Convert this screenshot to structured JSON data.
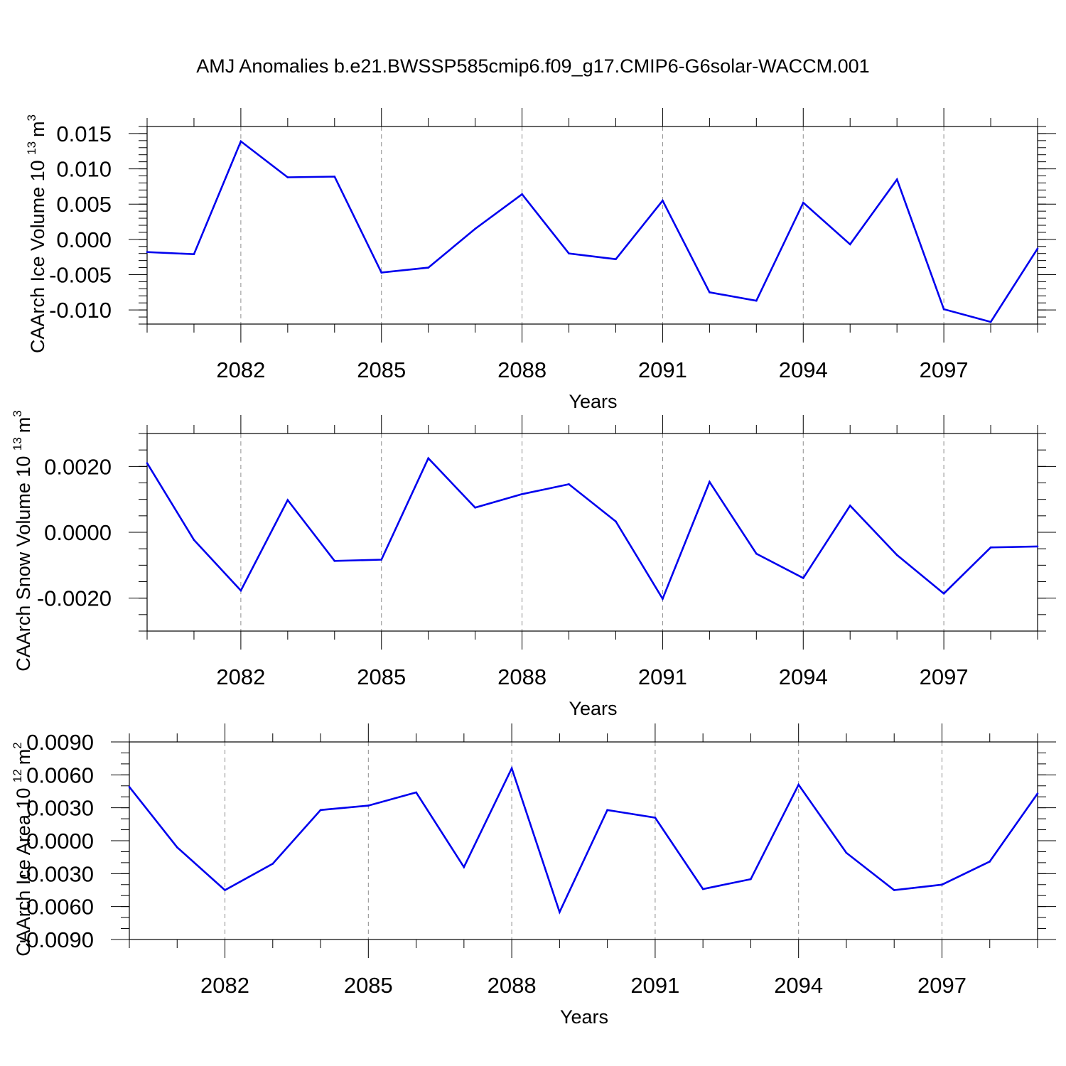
{
  "title": "AMJ Anomalies b.e21.BWSSP585cmip6.f09_g17.CMIP6-G6solar-WACCM.001",
  "colors": {
    "series": "#0000ee",
    "axis": "#000000",
    "grid": "#8c8c8c"
  },
  "chart_data": [
    {
      "type": "line",
      "ylabel_main": "CAArch Ice Volume 10",
      "ylabel_exp": "13",
      "ylabel_unit": "m",
      "ylabel_unit_exp": "3",
      "xlabel": "Years",
      "xlim": [
        2080,
        2099
      ],
      "ylim": [
        -0.012,
        0.016
      ],
      "xticks": [
        2082,
        2085,
        2088,
        2091,
        2094,
        2097
      ],
      "xtick_labels": [
        "2082",
        "2085",
        "2088",
        "2091",
        "2094",
        "2097"
      ],
      "yticks": [
        -0.01,
        -0.005,
        0.0,
        0.005,
        0.01,
        0.015
      ],
      "ytick_labels": [
        "-0.010",
        "-0.005",
        "0.000",
        "0.005",
        "0.010",
        "0.015"
      ],
      "yminor_step": 0.001,
      "grid_x": true,
      "x": [
        2080,
        2081,
        2082,
        2083,
        2084,
        2085,
        2086,
        2087,
        2088,
        2089,
        2090,
        2091,
        2092,
        2093,
        2094,
        2095,
        2096,
        2097,
        2098,
        2099
      ],
      "values": [
        -0.0018,
        -0.0021,
        0.0139,
        0.0088,
        0.0089,
        -0.0047,
        -0.004,
        0.0015,
        0.0064,
        -0.002,
        -0.0028,
        0.0055,
        -0.0075,
        -0.0087,
        0.0052,
        -0.0007,
        0.0085,
        -0.0099,
        -0.0117,
        -0.0013
      ]
    },
    {
      "type": "line",
      "ylabel_main": "CAArch Snow Volume 10",
      "ylabel_exp": "13",
      "ylabel_unit": "m",
      "ylabel_unit_exp": "3",
      "xlabel": "Years",
      "xlim": [
        2080,
        2099
      ],
      "ylim": [
        -0.003,
        0.003
      ],
      "xticks": [
        2082,
        2085,
        2088,
        2091,
        2094,
        2097
      ],
      "xtick_labels": [
        "2082",
        "2085",
        "2088",
        "2091",
        "2094",
        "2097"
      ],
      "yticks": [
        -0.002,
        0.0,
        0.002
      ],
      "ytick_labels": [
        "-0.0020",
        "0.0000",
        "0.0020"
      ],
      "yminor_step": 0.0005,
      "grid_x": true,
      "x": [
        2080,
        2081,
        2082,
        2083,
        2084,
        2085,
        2086,
        2087,
        2088,
        2089,
        2090,
        2091,
        2092,
        2093,
        2094,
        2095,
        2096,
        2097,
        2098,
        2099
      ],
      "values": [
        0.0021,
        -0.00023,
        -0.00177,
        0.00098,
        -0.00087,
        -0.00083,
        0.00225,
        0.00075,
        0.00116,
        0.00146,
        0.00033,
        -0.00202,
        0.00153,
        -0.00065,
        -0.00139,
        0.00081,
        -0.00069,
        -0.00186,
        -0.00046,
        -0.00043
      ]
    },
    {
      "type": "line",
      "ylabel_main": "CAArch Ice Area 10",
      "ylabel_exp": "12",
      "ylabel_unit": "m",
      "ylabel_unit_exp": "2",
      "xlabel": "Years",
      "xlim": [
        2080,
        2099
      ],
      "ylim": [
        -0.009,
        0.009
      ],
      "xticks": [
        2082,
        2085,
        2088,
        2091,
        2094,
        2097
      ],
      "xtick_labels": [
        "2082",
        "2085",
        "2088",
        "2091",
        "2094",
        "2097"
      ],
      "yticks": [
        -0.009,
        -0.006,
        -0.003,
        0.0,
        0.003,
        0.006,
        0.009
      ],
      "ytick_labels": [
        "-0.0090",
        "-0.0060",
        "-0.0030",
        "0.0000",
        "0.0030",
        "0.0060",
        "0.0090"
      ],
      "yminor_step": 0.001,
      "grid_x": true,
      "x": [
        2080,
        2081,
        2082,
        2083,
        2084,
        2085,
        2086,
        2087,
        2088,
        2089,
        2090,
        2091,
        2092,
        2093,
        2094,
        2095,
        2096,
        2097,
        2098,
        2099
      ],
      "values": [
        0.0049,
        -0.0006,
        -0.0045,
        -0.0021,
        0.0028,
        0.0032,
        0.0044,
        -0.0024,
        0.0066,
        -0.0065,
        0.0028,
        0.0021,
        -0.0044,
        -0.0035,
        0.0051,
        -0.0011,
        -0.0045,
        -0.004,
        -0.0019,
        0.0043
      ]
    }
  ]
}
